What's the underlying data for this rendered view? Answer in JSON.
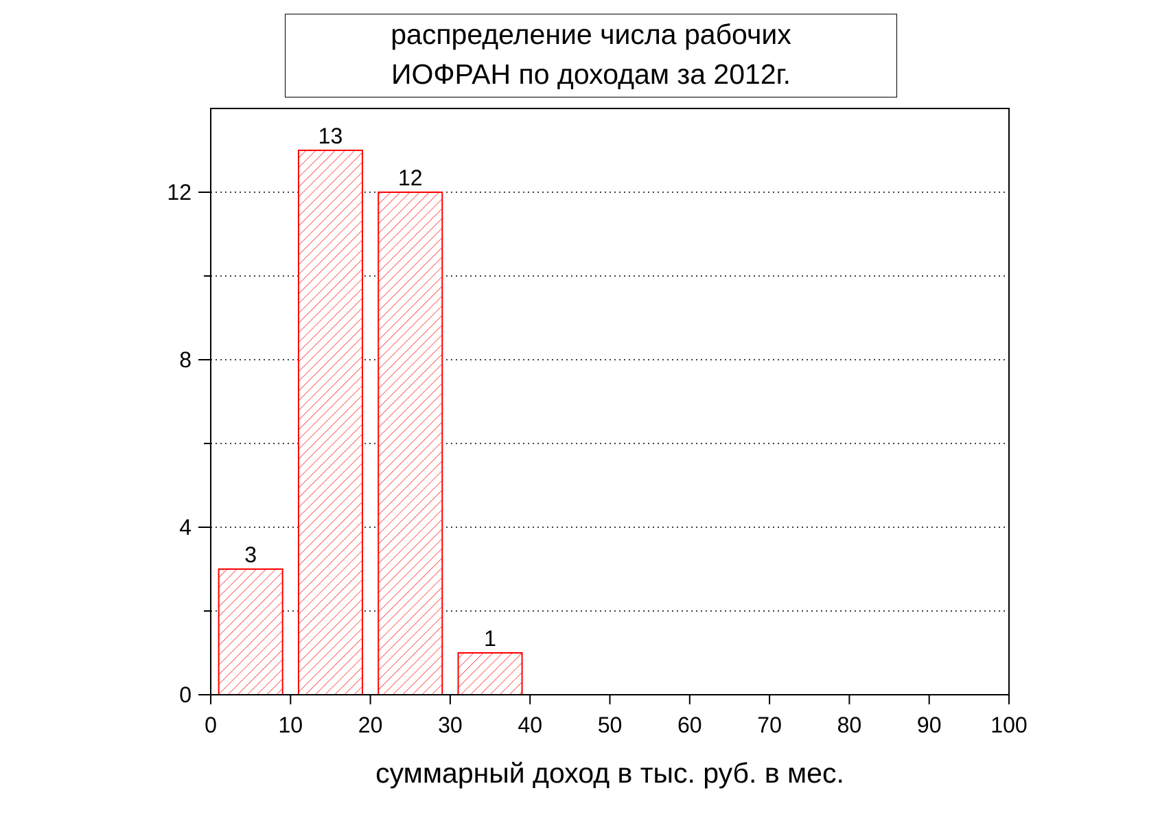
{
  "chart_data": {
    "type": "bar",
    "title_lines": [
      "распределение числа рабочих",
      "ИОФРАН по доходам за  2012г."
    ],
    "xlabel": "суммарный доход в тыс. руб. в мес.",
    "ylabel": "",
    "xlim": [
      0,
      100
    ],
    "ylim": [
      0,
      14
    ],
    "x_ticks": [
      0,
      10,
      20,
      30,
      40,
      50,
      60,
      70,
      80,
      90,
      100
    ],
    "x_tick_labels": [
      "0",
      "10",
      "20",
      "30",
      "40",
      "50",
      "60",
      "70",
      "80",
      "90",
      "100"
    ],
    "y_ticks": [
      0,
      4,
      8,
      12
    ],
    "y_tick_labels": [
      "0",
      "4",
      "8",
      "12"
    ],
    "y_minor_ticks": [
      2,
      6,
      10
    ],
    "grid": "horizontal dotted",
    "bars": [
      {
        "x_start": 1,
        "x_end": 9,
        "value": 3,
        "label": "3"
      },
      {
        "x_start": 11,
        "x_end": 19,
        "value": 13,
        "label": "13"
      },
      {
        "x_start": 21,
        "x_end": 29,
        "value": 12,
        "label": "12"
      },
      {
        "x_start": 31,
        "x_end": 39,
        "value": 1,
        "label": "1"
      }
    ],
    "bar_color": "#ff0000",
    "bar_fill": "diagonal hatch"
  }
}
